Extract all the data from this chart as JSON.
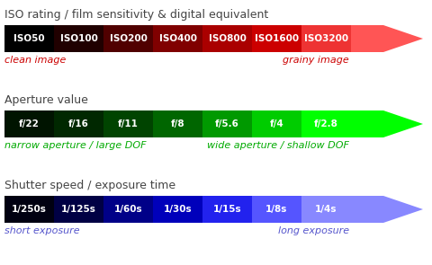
{
  "iso": {
    "title": "ISO rating / film sensitivity & digital equivalent",
    "labels": [
      "ISO50",
      "ISO100",
      "ISO200",
      "ISO400",
      "ISO800",
      "ISO1600",
      "ISO3200"
    ],
    "colors": [
      "#000000",
      "#200000",
      "#500000",
      "#800000",
      "#aa0000",
      "#cc0000",
      "#ee3333"
    ],
    "left_label": "clean image",
    "right_label": "grainy image",
    "label_color": "#cc0000",
    "arrow_color": "#ff5555",
    "title_color": "#444444"
  },
  "aperture": {
    "title": "Aperture value",
    "labels": [
      "f/22",
      "f/16",
      "f/11",
      "f/8",
      "f/5.6",
      "f/4",
      "f/2.8"
    ],
    "colors": [
      "#001400",
      "#002800",
      "#004400",
      "#006600",
      "#009900",
      "#00cc00",
      "#00ff00"
    ],
    "left_label": "narrow aperture / large DOF",
    "right_label": "wide aperture / shallow DOF",
    "label_color": "#00aa00",
    "arrow_color": "#00ff00",
    "title_color": "#444444"
  },
  "shutter": {
    "title": "Shutter speed / exposure time",
    "labels": [
      "1/250s",
      "1/125s",
      "1/60s",
      "1/30s",
      "1/15s",
      "1/8s",
      "1/4s"
    ],
    "colors": [
      "#000011",
      "#000044",
      "#000088",
      "#0000bb",
      "#2222ee",
      "#5555ff",
      "#8888ff"
    ],
    "left_label": "short exposure",
    "right_label": "long exposure",
    "label_color": "#5555cc",
    "arrow_color": "#8888ff",
    "title_color": "#444444"
  },
  "bg_color": "#ffffff",
  "text_color_on_bar": "#ffffff",
  "bar_fontsize": 7.5,
  "title_fontsize": 9.0,
  "label_fontsize": 8.0
}
